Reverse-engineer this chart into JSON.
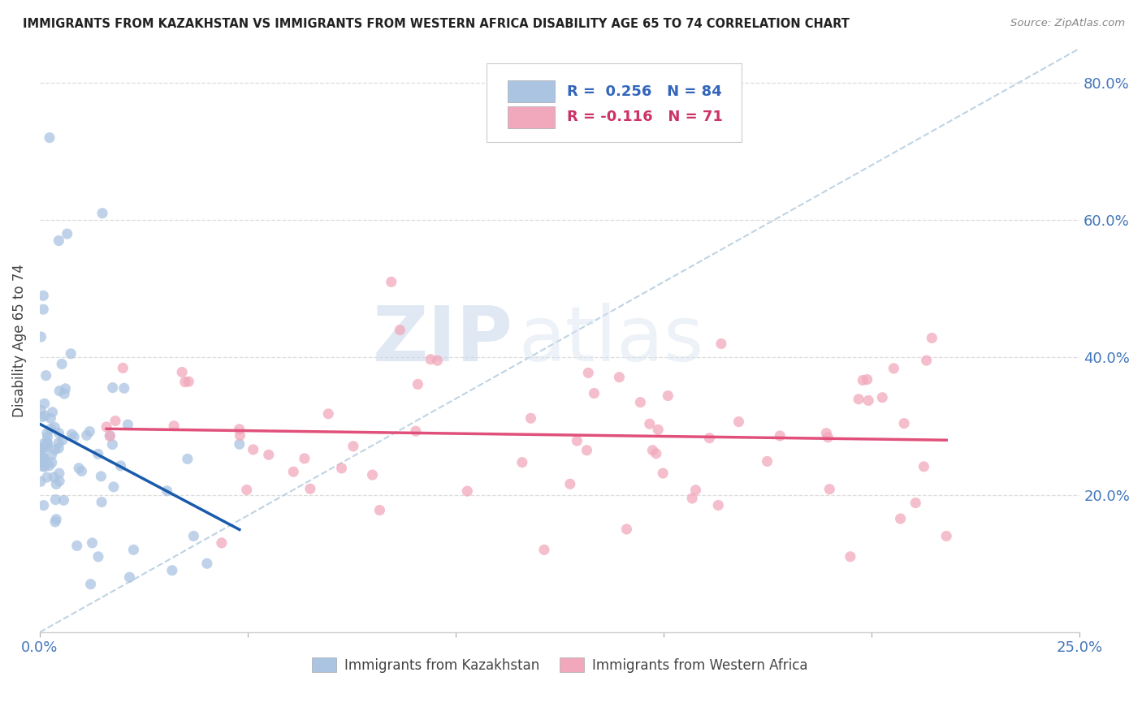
{
  "title": "IMMIGRANTS FROM KAZAKHSTAN VS IMMIGRANTS FROM WESTERN AFRICA DISABILITY AGE 65 TO 74 CORRELATION CHART",
  "source": "Source: ZipAtlas.com",
  "ylabel": "Disability Age 65 to 74",
  "legend_label1": "Immigrants from Kazakhstan",
  "legend_label2": "Immigrants from Western Africa",
  "R1": 0.256,
  "N1": 84,
  "R2": -0.116,
  "N2": 71,
  "color1": "#aac4e2",
  "color2": "#f2a8bc",
  "trendline_color1": "#1a5aab",
  "trendline_color2": "#e0507a",
  "diagonal_color": "#b8cfe0",
  "watermark_zip": "ZIP",
  "watermark_atlas": "atlas",
  "background_color": "#ffffff",
  "xlim": [
    0.0,
    0.25
  ],
  "ylim": [
    0.0,
    0.85
  ],
  "y_ticks": [
    0.2,
    0.4,
    0.6,
    0.8
  ],
  "y_tick_labels": [
    "20.0%",
    "40.0%",
    "60.0%",
    "80.0%"
  ],
  "x_tick_labels": [
    "0.0%",
    "",
    "",
    "",
    "",
    "25.0%"
  ],
  "x_ticks": [
    0.0,
    0.05,
    0.1,
    0.15,
    0.2,
    0.25
  ]
}
